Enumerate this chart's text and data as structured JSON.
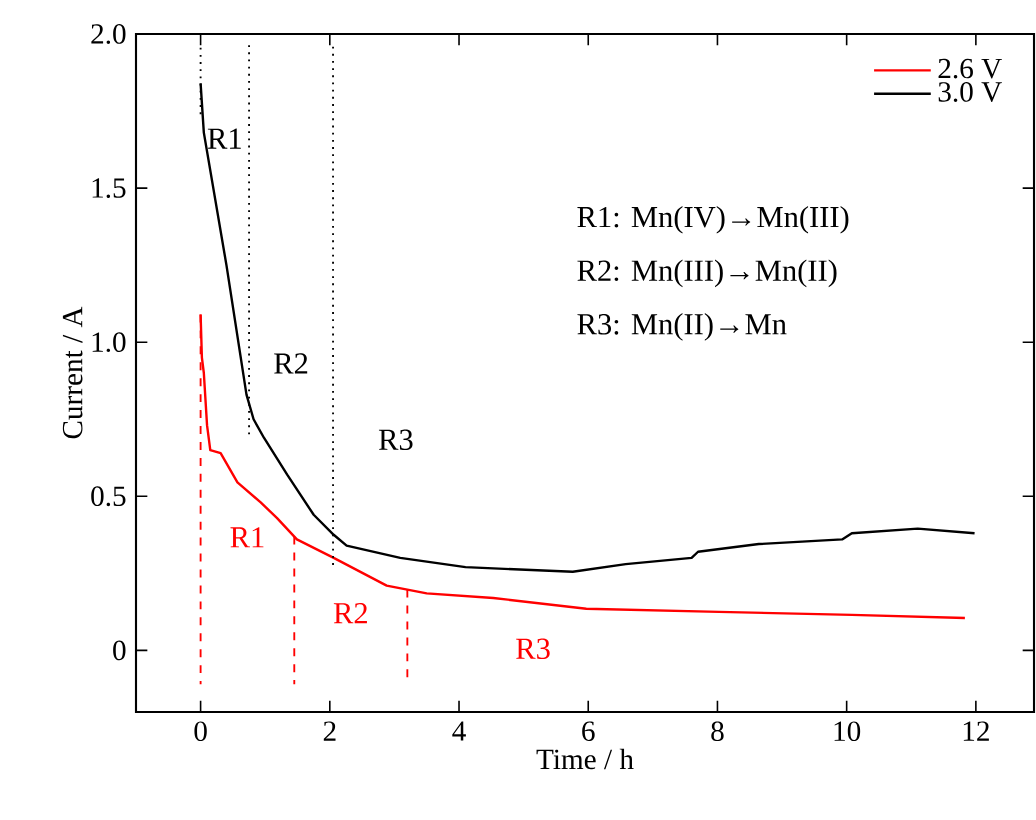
{
  "chart_data": {
    "type": "line",
    "xlabel": "Time / h",
    "ylabel": "Current / A",
    "xlim": [
      -1,
      12.9
    ],
    "ylim": [
      -0.2,
      2.0
    ],
    "xticks": [
      0,
      2,
      4,
      6,
      8,
      10,
      12
    ],
    "yticks": [
      0,
      0.5,
      {
        "value": 1,
        "label": "1.0"
      },
      1.5,
      {
        "value": 2,
        "label": "2.0"
      }
    ],
    "legend": "top right",
    "series": [
      {
        "name": "2.6 V",
        "color": "#ff0000",
        "x": [
          0,
          0.02,
          0.05,
          0.1,
          0.15,
          0.31,
          0.57,
          0.93,
          1.18,
          1.49,
          2.06,
          2.88,
          3.5,
          4.53,
          5.97,
          8.02,
          10.08,
          11.83
        ],
        "values": [
          1.09,
          0.95,
          0.9,
          0.73,
          0.65,
          0.64,
          0.545,
          0.48,
          0.43,
          0.36,
          0.3,
          0.21,
          0.185,
          0.17,
          0.135,
          0.125,
          0.115,
          0.105
        ]
      },
      {
        "name": "3.0 V",
        "color": "#000000",
        "x": [
          0,
          0.05,
          0.4,
          0.71,
          0.82,
          0.98,
          1.34,
          1.75,
          2.06,
          2.26,
          3.09,
          4.1,
          5.76,
          6.58,
          7.6,
          7.7,
          8.64,
          9.93,
          10.08,
          11.1,
          11.98
        ],
        "values": [
          1.84,
          1.68,
          1.25,
          0.83,
          0.75,
          0.69,
          0.57,
          0.44,
          0.375,
          0.34,
          0.3,
          0.27,
          0.255,
          0.28,
          0.3,
          0.32,
          0.345,
          0.36,
          0.38,
          0.395,
          0.38
        ]
      }
    ],
    "ref_lines": [
      {
        "axis": "x",
        "value": 0,
        "color": "#000000",
        "line_style": "dotted",
        "label": "R1"
      },
      {
        "axis": "x",
        "value": 0.75,
        "color": "#000000",
        "line_style": "dotted",
        "label": "R2"
      },
      {
        "axis": "x",
        "value": 2.05,
        "color": "#000000",
        "line_style": "dotted",
        "label": "R3"
      },
      {
        "axis": "x",
        "value": 0,
        "color": "#ff0000",
        "line_style": "dashed",
        "label": "R1"
      },
      {
        "axis": "x",
        "value": 1.45,
        "color": "#ff0000",
        "line_style": "dashed",
        "label": "R2"
      },
      {
        "axis": "x",
        "value": 3.2,
        "color": "#ff0000",
        "line_style": "dashed",
        "label": "R3"
      }
    ],
    "annotations": [
      "R1: Mn(IV)→Mn(III)",
      "R2: Mn(III)→Mn(II)",
      "R3: Mn(II)→Mn"
    ]
  }
}
